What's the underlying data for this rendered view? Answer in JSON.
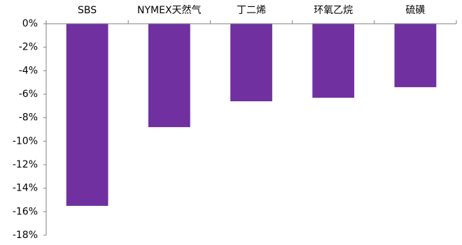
{
  "chart_data": {
    "type": "bar",
    "categories": [
      "SBS",
      "NYMEX天然气",
      "丁二烯",
      "环氧乙烷",
      "硫磺"
    ],
    "values": [
      -15.5,
      -8.8,
      -6.6,
      -6.3,
      -5.4
    ],
    "title": "",
    "xlabel": "",
    "ylabel": "",
    "ylim": [
      -18,
      0
    ],
    "y_ticks": [
      0,
      -2,
      -4,
      -6,
      -8,
      -10,
      -12,
      -14,
      -16,
      -18
    ],
    "y_tick_labels": [
      "0%",
      "-2%",
      "-4%",
      "-6%",
      "-8%",
      "-10%",
      "-12%",
      "-14%",
      "-16%",
      "-18%"
    ],
    "category_axis_position": "top",
    "grid": false,
    "legend": "none",
    "bar_color": "#7030a0",
    "axis_color": "#7f7f7f"
  }
}
